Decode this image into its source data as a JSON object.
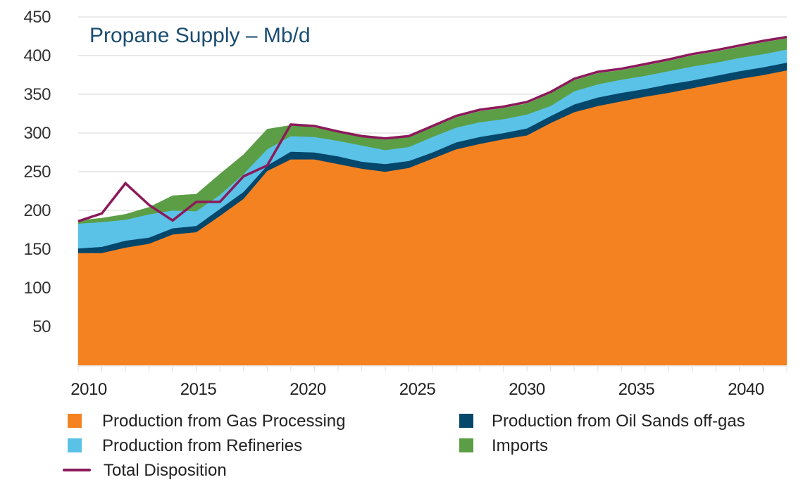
{
  "chart_data": {
    "type": "area",
    "stacked": true,
    "title": "Propane Supply – Mb/d",
    "xlabel": "",
    "ylabel": "",
    "x": [
      2010,
      2011,
      2012,
      2013,
      2014,
      2015,
      2016,
      2017,
      2018,
      2019,
      2020,
      2021,
      2022,
      2023,
      2024,
      2025,
      2026,
      2027,
      2028,
      2029,
      2030,
      2031,
      2032,
      2033,
      2034,
      2035,
      2036,
      2037,
      2038,
      2039,
      2040
    ],
    "xticks": [
      "2010",
      "2015",
      "2020",
      "2025",
      "2030",
      "2035",
      "2040"
    ],
    "ylim": [
      0,
      450
    ],
    "yticks": [
      "50",
      "100",
      "150",
      "200",
      "250",
      "300",
      "350",
      "400",
      "450"
    ],
    "grid": true,
    "legend_position": "bottom",
    "series": [
      {
        "name": "Production from Gas Processing",
        "color": "#f58220",
        "kind": "area",
        "values": [
          145,
          145,
          152,
          157,
          169,
          172,
          193,
          215,
          251,
          266,
          266,
          260,
          254,
          250,
          255,
          267,
          279,
          286,
          292,
          297,
          313,
          327,
          335,
          341,
          347,
          352,
          358,
          364,
          370,
          375,
          381
        ]
      },
      {
        "name": "Production from Oil Sands off-gas",
        "color": "#05466b",
        "kind": "area",
        "values": [
          6,
          8,
          9,
          8,
          8,
          8,
          9,
          9,
          7,
          10,
          9,
          10,
          9,
          10,
          9,
          8,
          9,
          9,
          8,
          9,
          9,
          10,
          11,
          11,
          10,
          11,
          10,
          10,
          10,
          10,
          10
        ]
      },
      {
        "name": "Production from Refineries",
        "color": "#5bc2e7",
        "kind": "area",
        "values": [
          32,
          32,
          27,
          30,
          23,
          19,
          18,
          23,
          21,
          20,
          20,
          20,
          21,
          18,
          18,
          20,
          19,
          19,
          18,
          18,
          13,
          17,
          17,
          17,
          17,
          17,
          18,
          17,
          17,
          17,
          17
        ]
      },
      {
        "name": "Imports",
        "color": "#5b9e45",
        "kind": "area",
        "values": [
          4,
          5,
          7,
          9,
          19,
          22,
          27,
          25,
          26,
          14,
          12,
          11,
          11,
          13,
          13,
          12,
          13,
          14,
          14,
          14,
          16,
          14,
          14,
          12,
          13,
          13,
          14,
          14,
          14,
          15,
          14
        ]
      },
      {
        "name": "Total Disposition",
        "color": "#8b1a5a",
        "kind": "line",
        "values": [
          186,
          196,
          235,
          207,
          187,
          211,
          211,
          244,
          258,
          311,
          309,
          302,
          296,
          293,
          296,
          309,
          322,
          330,
          334,
          340,
          353,
          370,
          379,
          383,
          389,
          395,
          402,
          407,
          413,
          419,
          424
        ]
      }
    ]
  }
}
